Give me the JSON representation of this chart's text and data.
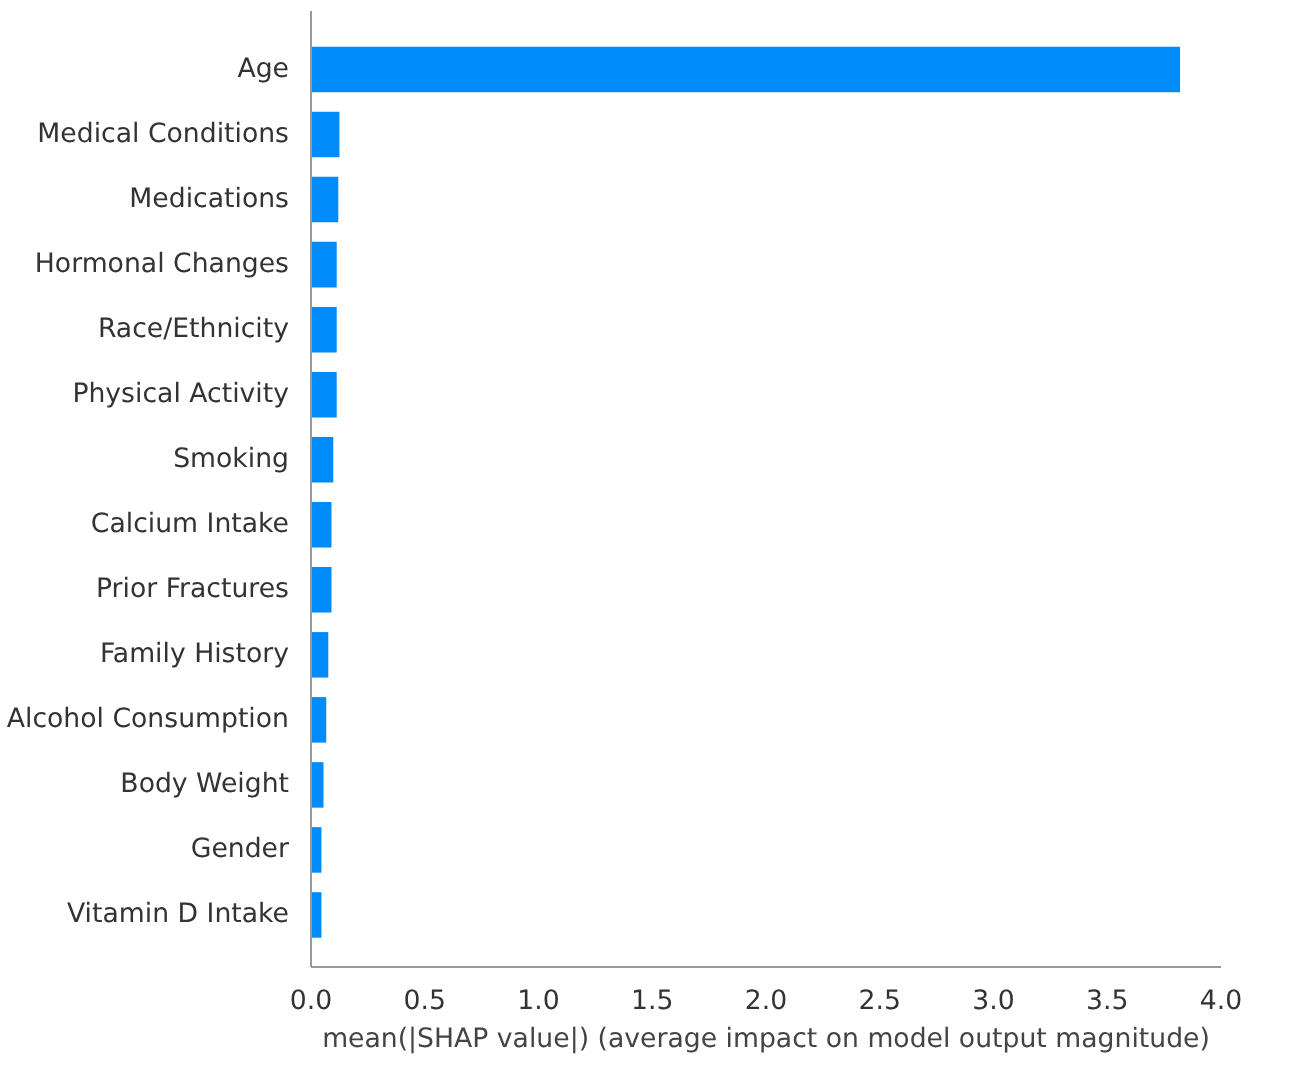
{
  "chart_data": {
    "type": "bar",
    "orientation": "horizontal",
    "xlabel": "mean(|SHAP value|) (average impact on model output magnitude)",
    "categories": [
      "Age",
      "Medical Conditions",
      "Medications",
      "Hormonal Changes",
      "Race/Ethnicity",
      "Physical Activity",
      "Smoking",
      "Calcium Intake",
      "Prior Fractures",
      "Family History",
      "Alcohol Consumption",
      "Body Weight",
      "Gender",
      "Vitamin D Intake"
    ],
    "values": [
      3.82,
      0.125,
      0.12,
      0.113,
      0.113,
      0.113,
      0.098,
      0.09,
      0.09,
      0.076,
      0.067,
      0.055,
      0.046,
      0.046
    ],
    "color": "#008bfb",
    "xlim": [
      0,
      4.0
    ],
    "xticks": [
      {
        "value": 0,
        "label": "0.0"
      },
      {
        "value": 0.5,
        "label": "0.5"
      },
      {
        "value": 1.0,
        "label": "1.0"
      },
      {
        "value": 1.5,
        "label": "1.5"
      },
      {
        "value": 2.0,
        "label": "2.0"
      },
      {
        "value": 2.5,
        "label": "2.5"
      },
      {
        "value": 3.0,
        "label": "3.0"
      },
      {
        "value": 3.5,
        "label": "3.5"
      },
      {
        "value": 4.0,
        "label": "4.0"
      }
    ],
    "grid": false
  }
}
